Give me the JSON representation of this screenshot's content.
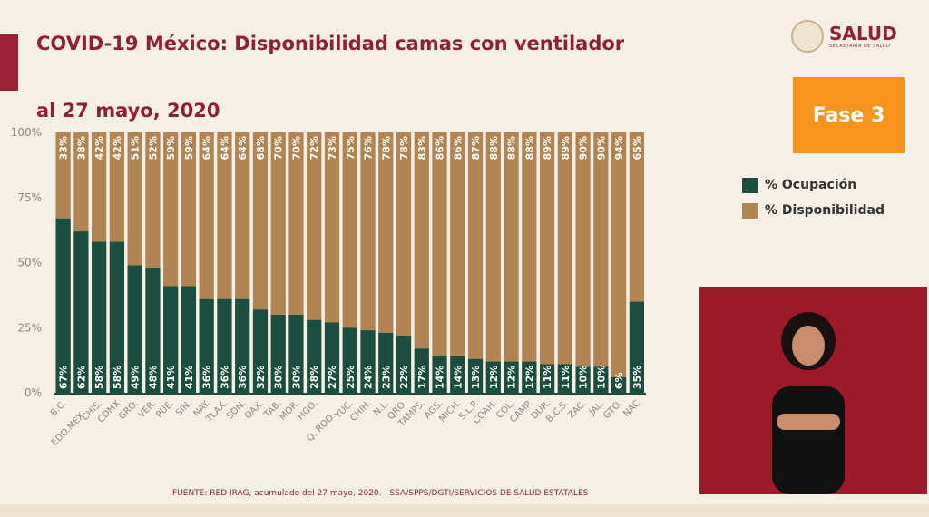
{
  "header": {
    "title": "COVID-19 México: Disponibilidad camas con ventilador",
    "subtitle": "al 27 mayo, 2020",
    "logo_text": "SALUD",
    "logo_sub": "SECRETARÍA DE SALUD",
    "phase": "Fase 3"
  },
  "footer": {
    "source": "FUENTE: RED IRAG, acumulado del 27 mayo, 2020. -  SSA/SPPS/DGTI/SERVICIOS DE SALUD ESTATALES"
  },
  "colors": {
    "occupancy": "#1d4d3e",
    "availability": "#b08553",
    "title": "#8f2039",
    "phase": "#f7941d"
  },
  "chart_data": {
    "type": "bar",
    "stacked": true,
    "title": "COVID-19 México: Disponibilidad camas con ventilador",
    "ylim": [
      0,
      100
    ],
    "yticks": [
      "0%",
      "25%",
      "50%",
      "75%",
      "100%"
    ],
    "legend_position": "right",
    "categories": [
      "B.C.",
      "EDO.MEX",
      "CHIS.",
      "CDMX",
      "GRO.",
      "VER.",
      "PUE.",
      "SIN.",
      "NAY.",
      "TLAX.",
      "SON.",
      "OAX.",
      "TAB.",
      "MOR.",
      "HGO.",
      "Q. ROO.",
      "YUC.",
      "CHIH.",
      "N.L.",
      "QRO.",
      "TAMPS.",
      "AGS.",
      "MICH.",
      "S.L.P.",
      "COAH.",
      "COL.",
      "CAMP.",
      "DUR.",
      "B.C.S.",
      "ZAC.",
      "JAL.",
      "GTO.",
      "NAC"
    ],
    "series": [
      {
        "name": "% Ocupación",
        "values": [
          67,
          62,
          58,
          58,
          49,
          48,
          41,
          41,
          36,
          36,
          36,
          32,
          30,
          30,
          28,
          27,
          25,
          24,
          23,
          22,
          17,
          14,
          14,
          13,
          12,
          12,
          12,
          11,
          11,
          10,
          10,
          6,
          35
        ]
      },
      {
        "name": "% Disponibilidad",
        "values": [
          33,
          38,
          42,
          42,
          51,
          52,
          59,
          59,
          64,
          64,
          64,
          68,
          70,
          70,
          72,
          73,
          75,
          76,
          78,
          78,
          83,
          86,
          86,
          87,
          88,
          88,
          88,
          89,
          89,
          90,
          90,
          94,
          65
        ]
      }
    ]
  }
}
